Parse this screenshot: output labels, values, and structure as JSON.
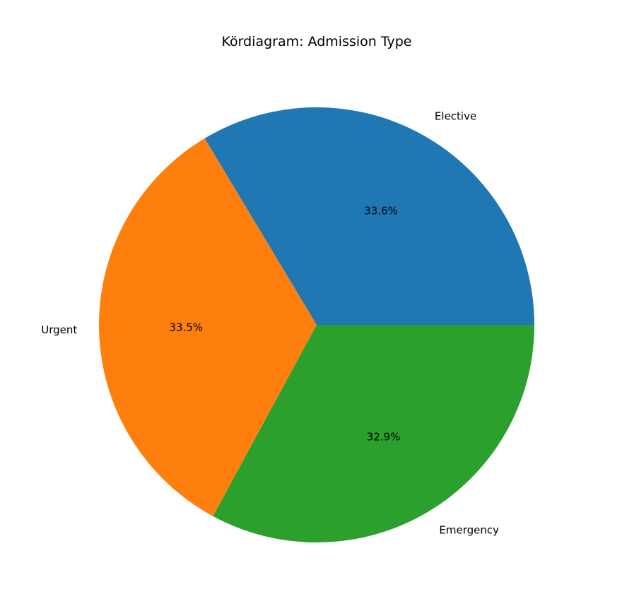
{
  "chart_data": {
    "type": "pie",
    "title": "Kördiagram: Admission Type",
    "slices": [
      {
        "label": "Elective",
        "value": 33.6,
        "pct_label": "33.6%",
        "color": "#1f77b4"
      },
      {
        "label": "Urgent",
        "value": 33.5,
        "pct_label": "33.5%",
        "color": "#ff7f0e"
      },
      {
        "label": "Emergency",
        "value": 32.9,
        "pct_label": "32.9%",
        "color": "#2ca02c"
      }
    ],
    "start_angle_deg": 0,
    "direction": "counterclockwise"
  }
}
